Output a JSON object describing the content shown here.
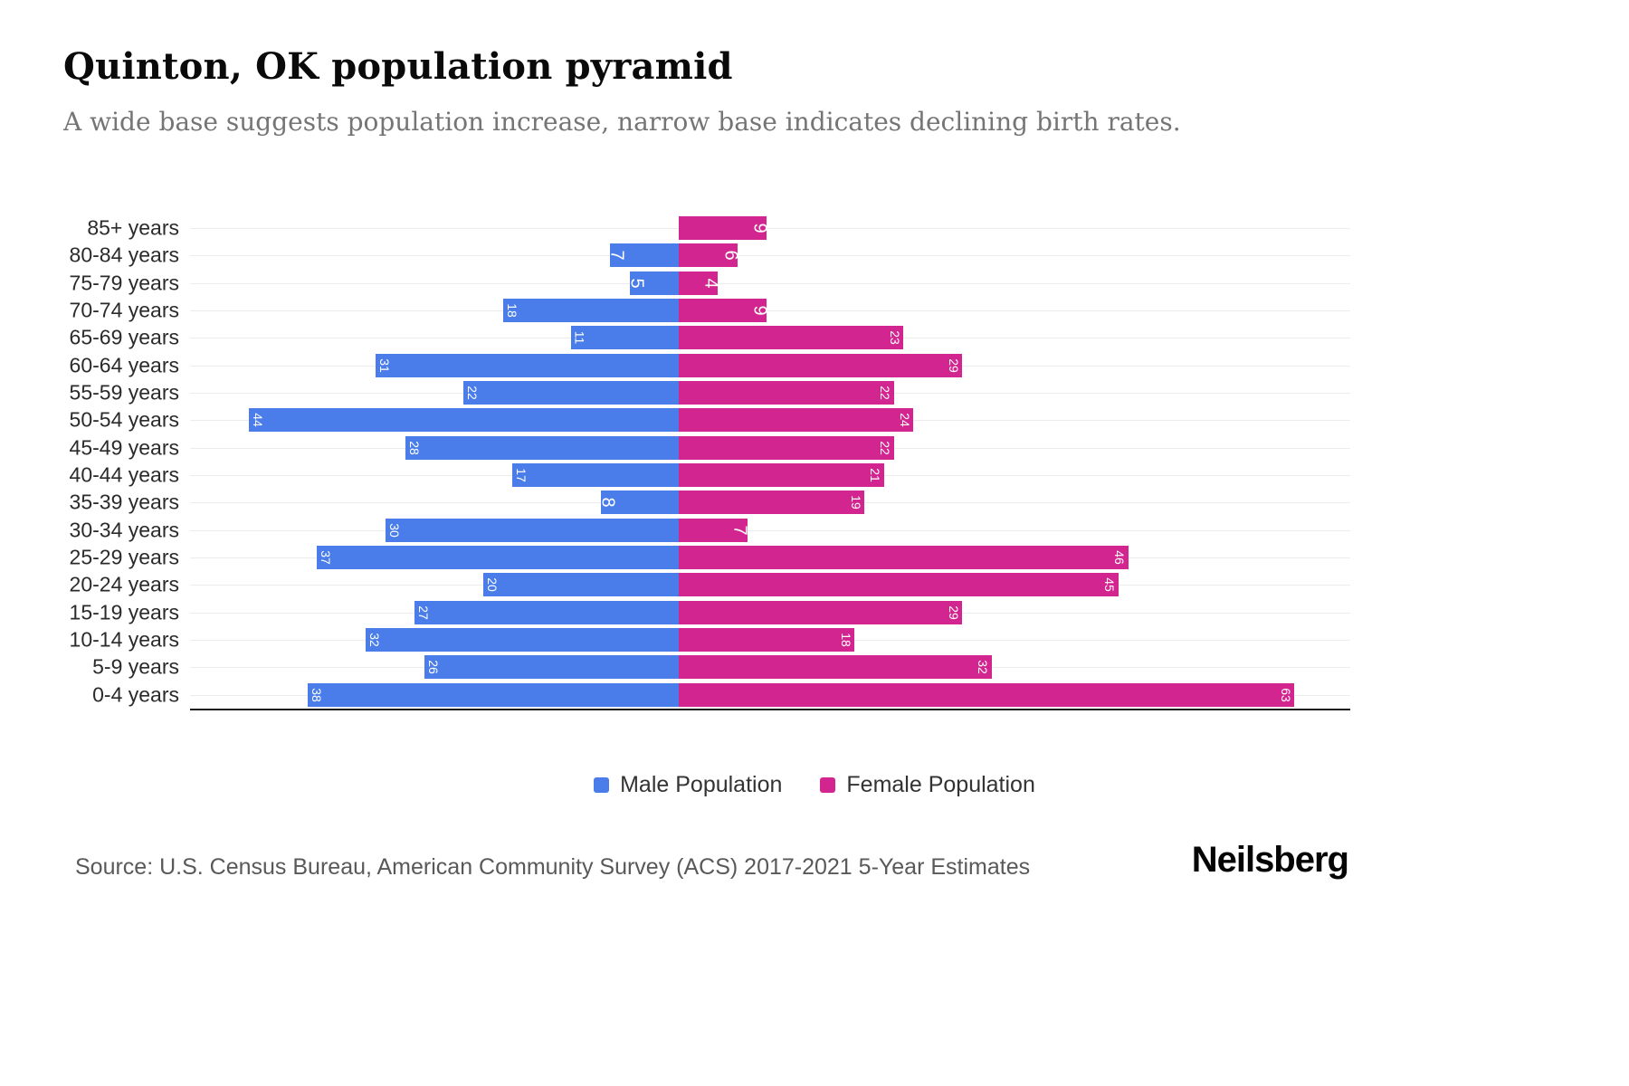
{
  "header": {
    "title": "Quinton, OK population pyramid",
    "subtitle": "A wide base suggests population increase, narrow base indicates declining birth rates."
  },
  "chart_data": {
    "type": "bar",
    "variant": "population-pyramid",
    "title": "Quinton, OK population pyramid",
    "subtitle": "A wide base suggests population increase, narrow base indicates declining birth rates.",
    "categories": [
      "85+ years",
      "80-84 years",
      "75-79 years",
      "70-74 years",
      "65-69 years",
      "60-64 years",
      "55-59 years",
      "50-54 years",
      "45-49 years",
      "40-44 years",
      "35-39 years",
      "30-34 years",
      "25-29 years",
      "20-24 years",
      "15-19 years",
      "10-14 years",
      "5-9 years",
      "0-4 years"
    ],
    "series": [
      {
        "name": "Male Population",
        "color": "#4a7dea",
        "values": [
          0,
          7,
          5,
          18,
          11,
          31,
          22,
          44,
          28,
          17,
          8,
          30,
          37,
          20,
          27,
          32,
          26,
          38
        ]
      },
      {
        "name": "Female Population",
        "color": "#d2258f",
        "values": [
          9,
          6,
          4,
          9,
          23,
          29,
          22,
          24,
          22,
          21,
          19,
          7,
          46,
          45,
          29,
          18,
          32,
          63
        ]
      }
    ],
    "value_label_color": "#ffffff",
    "xlabel": "",
    "ylabel": "",
    "xlim": [
      0,
      65
    ],
    "grid": true,
    "legend_position": "bottom"
  },
  "footer": {
    "source": "Source: U.S. Census Bureau, American Community Survey (ACS) 2017-2021 5-Year Estimates",
    "brand": "Neilsberg"
  }
}
